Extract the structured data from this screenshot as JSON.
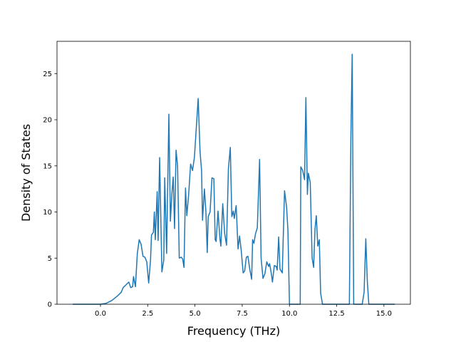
{
  "chart_data": {
    "type": "line",
    "x_label": "Frequency (THz)",
    "y_label": "Density of States",
    "xlim": [
      -2.3,
      16.4
    ],
    "ylim": [
      0,
      28.5
    ],
    "xticks": [
      {
        "value": 0,
        "label": "0.0"
      },
      2.5,
      {
        "value": 5,
        "label": "5.0"
      },
      7.5,
      {
        "value": 10,
        "label": "10.0"
      },
      12.5,
      {
        "value": 15,
        "label": "15.0"
      }
    ],
    "yticks": [
      0,
      5,
      10,
      15,
      20,
      25
    ],
    "series": [
      {
        "color": "#1f77b4",
        "x": [
          -1.47,
          -1.0,
          -0.5,
          0,
          0.3,
          0.6,
          0.9,
          1.1,
          1.2,
          1.4,
          1.5,
          1.6,
          1.7,
          1.75,
          1.85,
          1.95,
          2.05,
          2.15,
          2.25,
          2.35,
          2.45,
          2.55,
          2.65,
          2.7,
          2.8,
          2.85,
          2.9,
          3.0,
          3.05,
          3.13,
          3.25,
          3.35,
          3.4,
          3.5,
          3.62,
          3.7,
          3.78,
          3.85,
          3.92,
          4.0,
          4.08,
          4.17,
          4.27,
          4.35,
          4.42,
          4.5,
          4.57,
          4.67,
          4.77,
          4.87,
          4.97,
          5.17,
          5.27,
          5.35,
          5.4,
          5.5,
          5.58,
          5.65,
          5.7,
          5.8,
          5.9,
          6.0,
          6.07,
          6.12,
          6.22,
          6.32,
          6.37,
          6.47,
          6.57,
          6.67,
          6.77,
          6.87,
          6.95,
          7.03,
          7.08,
          7.18,
          7.28,
          7.36,
          7.45,
          7.55,
          7.63,
          7.72,
          7.8,
          7.9,
          8.0,
          8.05,
          8.12,
          8.2,
          8.3,
          8.42,
          8.5,
          8.6,
          8.7,
          8.8,
          8.9,
          8.95,
          9.05,
          9.1,
          9.2,
          9.3,
          9.35,
          9.43,
          9.5,
          9.62,
          9.74,
          9.85,
          9.92,
          10.0,
          10.3,
          10.57,
          10.6,
          10.7,
          10.8,
          10.87,
          10.95,
          11.0,
          11.1,
          11.2,
          11.28,
          11.35,
          11.42,
          11.5,
          11.58,
          11.65,
          11.75,
          12.2,
          12.8,
          13.17,
          13.25,
          13.32,
          13.4,
          13.85,
          13.95,
          14.04,
          14.12,
          14.2,
          15.0,
          15.58
        ],
        "values": [
          0,
          0,
          0,
          0,
          0.1,
          0.4,
          0.9,
          1.3,
          1.8,
          2.2,
          2.4,
          1.8,
          1.9,
          3.0,
          1.9,
          5.5,
          7.0,
          6.5,
          5.2,
          5.1,
          4.6,
          2.3,
          4.8,
          7.5,
          7.8,
          10.0,
          7.0,
          12.2,
          6.9,
          15.9,
          3.5,
          4.8,
          13.7,
          5.5,
          20.6,
          9.0,
          12.0,
          13.8,
          8.2,
          16.7,
          15.0,
          5.0,
          5.1,
          4.9,
          4.0,
          12.6,
          9.6,
          12.0,
          15.2,
          14.5,
          15.9,
          22.3,
          16.5,
          14.5,
          9.1,
          12.5,
          10.0,
          5.6,
          9.5,
          10.0,
          13.7,
          13.6,
          7.0,
          6.8,
          10.1,
          7.1,
          6.3,
          10.9,
          7.7,
          6.4,
          14.7,
          17.0,
          9.5,
          10.1,
          9.3,
          10.7,
          6.0,
          7.4,
          5.8,
          3.4,
          3.6,
          5.1,
          5.2,
          3.8,
          2.7,
          7.0,
          6.6,
          7.6,
          8.3,
          15.7,
          5.0,
          2.8,
          3.3,
          4.6,
          4.1,
          4.4,
          3.2,
          2.4,
          4.2,
          4.1,
          3.7,
          7.3,
          3.8,
          3.4,
          12.3,
          10.5,
          8.0,
          0,
          0,
          0,
          14.9,
          14.5,
          13.5,
          22.4,
          11.9,
          14.2,
          13.2,
          5.0,
          4.0,
          8.1,
          9.6,
          6.3,
          7.0,
          1.2,
          0,
          0,
          0,
          0,
          18.0,
          27.1,
          0,
          0,
          1.3,
          7.1,
          2.5,
          0,
          0,
          0
        ]
      }
    ]
  }
}
